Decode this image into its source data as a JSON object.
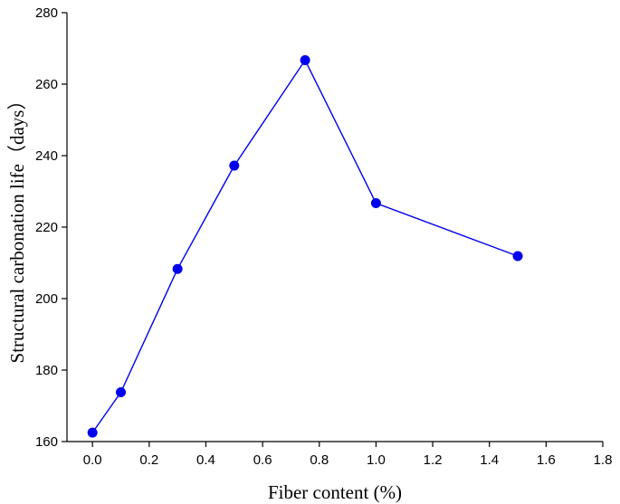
{
  "chart_data": {
    "type": "line",
    "title": "",
    "xlabel": "Fiber content (%)",
    "ylabel": "Structural carbonation life（days）",
    "xlim": [
      -0.09,
      1.8
    ],
    "ylim": [
      160,
      280
    ],
    "x_ticks": [
      0.0,
      0.2,
      0.4,
      0.6,
      0.8,
      1.0,
      1.2,
      1.4,
      1.6,
      1.8
    ],
    "x_tick_labels": [
      "0.0",
      "0.2",
      "0.4",
      "0.6",
      "0.8",
      "1.0",
      "1.2",
      "1.4",
      "1.6",
      "1.8"
    ],
    "y_ticks": [
      160,
      180,
      200,
      220,
      240,
      260,
      280
    ],
    "y_tick_labels": [
      "160",
      "180",
      "200",
      "220",
      "240",
      "260",
      "280"
    ],
    "grid": false,
    "legend": "none",
    "series": [
      {
        "color": "#0000ee",
        "x": [
          0.0,
          0.1,
          0.3,
          0.5,
          0.75,
          1.0,
          1.5
        ],
        "y": [
          162.5,
          173.8,
          208.3,
          237.2,
          266.7,
          226.7,
          211.9
        ]
      }
    ]
  }
}
